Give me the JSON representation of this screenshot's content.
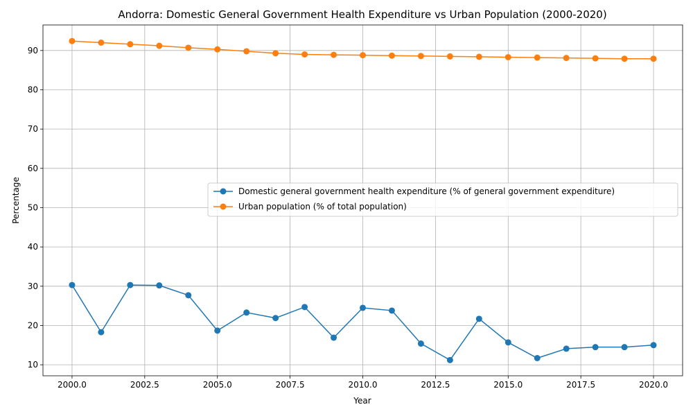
{
  "chart_data": {
    "type": "line",
    "title": "Andorra: Domestic General Government Health Expenditure vs Urban Population (2000-2020)",
    "xlabel": "Year",
    "ylabel": "Percentage",
    "xlim": [
      1999.0,
      2021.0
    ],
    "ylim": [
      7.2,
      96.5
    ],
    "x_ticks": [
      2000.0,
      2002.5,
      2005.0,
      2007.5,
      2010.0,
      2012.5,
      2015.0,
      2017.5,
      2020.0
    ],
    "x_tick_labels": [
      "2000.0",
      "2002.5",
      "2005.0",
      "2007.5",
      "2010.0",
      "2012.5",
      "2015.0",
      "2017.5",
      "2020.0"
    ],
    "y_ticks": [
      10,
      20,
      30,
      40,
      50,
      60,
      70,
      80,
      90
    ],
    "y_tick_labels": [
      "10",
      "20",
      "30",
      "40",
      "50",
      "60",
      "70",
      "80",
      "90"
    ],
    "grid": true,
    "legend_placement": "center-right",
    "x": [
      2000,
      2001,
      2002,
      2003,
      2004,
      2005,
      2006,
      2007,
      2008,
      2009,
      2010,
      2011,
      2012,
      2013,
      2014,
      2015,
      2016,
      2017,
      2018,
      2019,
      2020
    ],
    "series": [
      {
        "name": "Domestic general government health expenditure (% of general government expenditure)",
        "color": "#1f77b4",
        "values": [
          30.3,
          18.3,
          30.3,
          30.2,
          27.7,
          18.7,
          23.3,
          21.9,
          24.7,
          16.9,
          24.5,
          23.8,
          15.4,
          11.2,
          21.7,
          15.7,
          11.7,
          14.1,
          14.5,
          14.5,
          15.0
        ]
      },
      {
        "name": "Urban population (% of total population)",
        "color": "#ff7f0e",
        "values": [
          92.4,
          92.0,
          91.6,
          91.2,
          90.7,
          90.3,
          89.8,
          89.3,
          89.0,
          88.9,
          88.8,
          88.7,
          88.6,
          88.5,
          88.4,
          88.3,
          88.2,
          88.1,
          88.0,
          87.9,
          87.9
        ]
      }
    ]
  }
}
